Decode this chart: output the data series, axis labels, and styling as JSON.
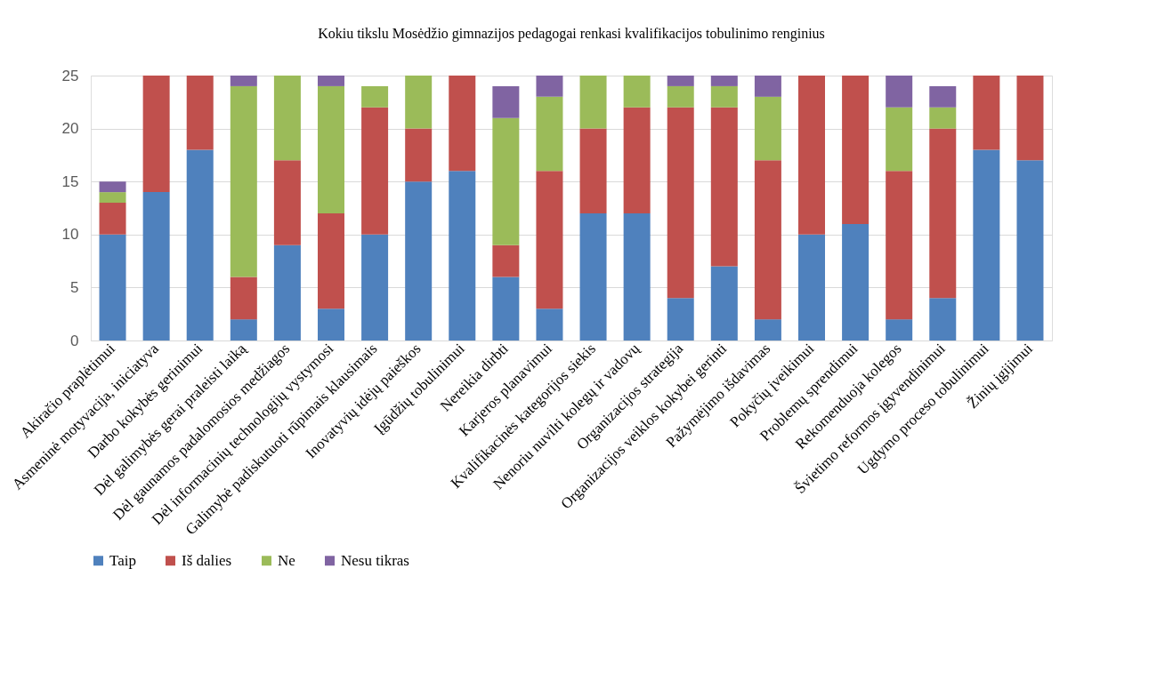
{
  "chart_data": {
    "type": "bar",
    "stacked": true,
    "title": "Kokiu tikslu Mosėdžio gimnazijos pedagogai renkasi kvalifikacijos tobulinimo renginius",
    "categories": [
      "Akiračio praplėtimui",
      "Asmeninė motyvacija, iniciatyva",
      "Darbo kokybės gerinimui",
      "Dėl galimybės gerai praleisti laiką",
      "Dėl gaunamos padalomosios medžiagos",
      "Dėl informacinių technologijų vystymosi",
      "Galimybė padiskutuoti rūpimais klausimais",
      "Inovatyvių idėjų paieškos",
      "Įgūdžių tobulinimui",
      "Nereikia dirbti",
      "Karjeros planavimui",
      "Kvalifikacinės kategorijos siekis",
      "Nenoriu nuvilti kolegų ir vadovų",
      "Organizacijos strategija",
      "Organizacijos veiklos kokybei gerinti",
      "Pažymėjimo išdavimas",
      "Pokyčių įveikimui",
      "Problemų sprendimui",
      "Rekomenduoja kolegos",
      "Švietimo reformos įgyvendinimui",
      "Ugdymo proceso tobulinimui",
      "Žinių įgijimui"
    ],
    "series": [
      {
        "name": "Taip",
        "color": "#4f81bd",
        "values": [
          10,
          14,
          18,
          2,
          9,
          3,
          10,
          15,
          16,
          6,
          3,
          12,
          12,
          4,
          7,
          2,
          10,
          11,
          2,
          4,
          18,
          17
        ]
      },
      {
        "name": "Iš dalies",
        "color": "#c0504d",
        "values": [
          3,
          11,
          7,
          4,
          8,
          9,
          12,
          5,
          9,
          3,
          13,
          8,
          10,
          18,
          15,
          15,
          15,
          14,
          14,
          16,
          7,
          8
        ]
      },
      {
        "name": "Ne",
        "color": "#9bbb59",
        "values": [
          1,
          0,
          0,
          18,
          8,
          12,
          2,
          5,
          0,
          12,
          7,
          5,
          3,
          2,
          2,
          6,
          0,
          0,
          6,
          2,
          0,
          0
        ]
      },
      {
        "name": "Nesu tikras",
        "color": "#8064a2",
        "values": [
          1,
          0,
          0,
          1,
          0,
          1,
          0,
          0,
          0,
          3,
          2,
          0,
          0,
          1,
          1,
          2,
          0,
          0,
          3,
          2,
          0,
          0
        ]
      }
    ],
    "ylim": [
      0,
      25
    ],
    "yticks": [
      0,
      5,
      10,
      15,
      20,
      25
    ],
    "grid": "y",
    "legend": "bottom"
  }
}
